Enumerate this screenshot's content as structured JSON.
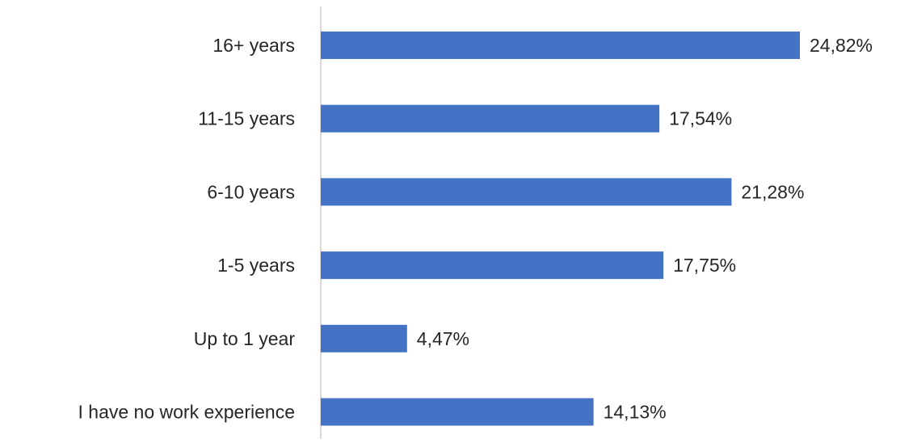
{
  "chart_data": {
    "type": "bar",
    "orientation": "horizontal",
    "title": "",
    "xlabel": "",
    "ylabel": "",
    "categories": [
      "16+ years",
      "11-15 years",
      "6-10 years",
      "1-5 years",
      "Up to 1 year",
      "I have no work experience"
    ],
    "values": [
      24.82,
      17.54,
      21.28,
      17.75,
      4.47,
      14.13
    ],
    "data_labels": [
      "24,82%",
      "17,54%",
      "21,28%",
      "17,75%",
      "4,47%",
      "14,13%"
    ],
    "xlim": [
      0,
      24.82
    ],
    "grid": false,
    "legend": "none",
    "colors": {
      "bar": "#4472C4",
      "axis_line": "#D9D9D9",
      "text": "#262626"
    }
  }
}
